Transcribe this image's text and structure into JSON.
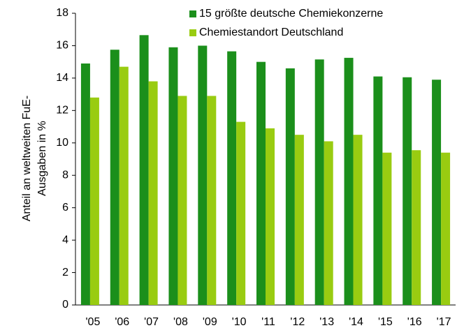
{
  "chart_data": {
    "type": "bar",
    "ylabel": [
      "Anteil an weltweiten FuE-",
      "Ausgaben  in %"
    ],
    "categories": [
      "'05",
      "'06",
      "'07",
      "'08",
      "'09",
      "'10",
      "'11",
      "'12",
      "'13",
      "'14",
      "'15",
      "'16",
      "'17"
    ],
    "series": [
      {
        "name": "15 größte deutsche Chemiekonzerne",
        "color": "#1b8f1b",
        "values": [
          14.9,
          15.75,
          16.65,
          15.9,
          16.0,
          15.65,
          15.0,
          14.6,
          15.15,
          15.25,
          14.1,
          14.05,
          13.9
        ]
      },
      {
        "name": "Chemiestandort Deutschland",
        "color": "#99cc11",
        "values": [
          12.8,
          14.7,
          13.8,
          12.9,
          12.9,
          11.3,
          10.9,
          10.5,
          10.1,
          10.5,
          9.4,
          9.55,
          9.4
        ]
      }
    ],
    "ylim": [
      0,
      18
    ],
    "yticks": [
      0,
      2,
      4,
      6,
      8,
      10,
      12,
      14,
      16,
      18
    ],
    "grid": false,
    "legend": "top-right"
  }
}
